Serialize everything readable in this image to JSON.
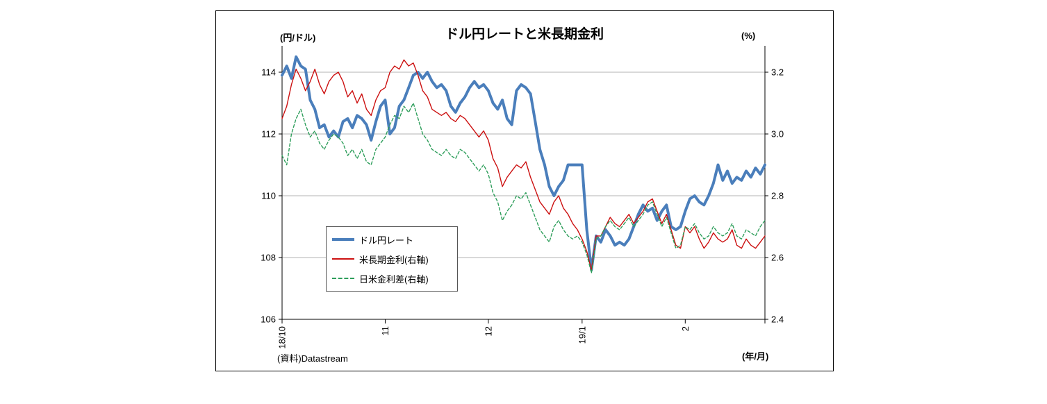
{
  "chart_data": {
    "type": "line",
    "title": "ドル円レートと米長期金利",
    "x_axis_unit": "(年/月)",
    "source": "(資料)Datastream",
    "grid": "horizontal",
    "legend_position": "inside-left-bottom",
    "left_axis": {
      "unit": "(円/ドル)",
      "min": 106,
      "max": 114,
      "ticks": [
        106,
        108,
        110,
        112,
        114
      ]
    },
    "right_axis": {
      "unit": "(%)",
      "min": 2.4,
      "max": 3.2,
      "ticks": [
        2.4,
        2.6,
        2.8,
        3.0,
        3.2
      ]
    },
    "x_ticks": [
      {
        "label": "18/10",
        "index": 0
      },
      {
        "label": "11",
        "index": 22
      },
      {
        "label": "12",
        "index": 44
      },
      {
        "label": "19/1",
        "index": 64
      },
      {
        "label": "2",
        "index": 86
      }
    ],
    "series": [
      {
        "name": "ドル円レート",
        "axis": "left",
        "color": "#4a7ebb",
        "style": "solid-thick",
        "values": [
          113.9,
          114.2,
          113.8,
          114.5,
          114.2,
          114.1,
          113.1,
          112.8,
          112.2,
          112.3,
          111.9,
          112.1,
          111.9,
          112.4,
          112.5,
          112.2,
          112.6,
          112.5,
          112.3,
          111.8,
          112.4,
          112.9,
          113.1,
          112.0,
          112.2,
          112.9,
          113.1,
          113.5,
          113.9,
          114.0,
          113.8,
          114.0,
          113.7,
          113.5,
          113.6,
          113.4,
          112.9,
          112.7,
          113.0,
          113.2,
          113.5,
          113.7,
          113.5,
          113.6,
          113.4,
          113.0,
          112.8,
          113.1,
          112.5,
          112.3,
          113.4,
          113.6,
          113.5,
          113.3,
          112.4,
          111.5,
          111.0,
          110.3,
          110.0,
          110.3,
          110.5,
          111.0,
          111.0,
          111.0,
          111.0,
          108.9,
          107.6,
          108.7,
          108.5,
          108.9,
          108.7,
          108.4,
          108.5,
          108.4,
          108.6,
          109.0,
          109.4,
          109.7,
          109.5,
          109.6,
          109.2,
          109.5,
          109.7,
          109.0,
          108.9,
          109.0,
          109.5,
          109.9,
          110.0,
          109.8,
          109.7,
          110.0,
          110.4,
          111.0,
          110.5,
          110.8,
          110.4,
          110.6,
          110.5,
          110.8,
          110.6,
          110.9,
          110.7,
          111.0
        ]
      },
      {
        "name": "米長期金利(右軸)",
        "axis": "right",
        "color": "#cc1111",
        "style": "solid-thin",
        "values": [
          3.05,
          3.09,
          3.16,
          3.21,
          3.18,
          3.14,
          3.17,
          3.21,
          3.16,
          3.13,
          3.17,
          3.19,
          3.2,
          3.17,
          3.12,
          3.14,
          3.1,
          3.13,
          3.08,
          3.06,
          3.11,
          3.14,
          3.15,
          3.2,
          3.22,
          3.21,
          3.24,
          3.22,
          3.23,
          3.19,
          3.14,
          3.12,
          3.08,
          3.07,
          3.06,
          3.07,
          3.05,
          3.04,
          3.06,
          3.05,
          3.03,
          3.01,
          2.99,
          3.01,
          2.98,
          2.92,
          2.89,
          2.83,
          2.86,
          2.88,
          2.9,
          2.89,
          2.91,
          2.86,
          2.82,
          2.78,
          2.76,
          2.74,
          2.78,
          2.8,
          2.76,
          2.74,
          2.71,
          2.69,
          2.66,
          2.62,
          2.56,
          2.67,
          2.67,
          2.7,
          2.73,
          2.71,
          2.7,
          2.72,
          2.74,
          2.71,
          2.73,
          2.75,
          2.78,
          2.79,
          2.75,
          2.71,
          2.74,
          2.69,
          2.64,
          2.63,
          2.7,
          2.68,
          2.7,
          2.66,
          2.63,
          2.65,
          2.68,
          2.66,
          2.65,
          2.66,
          2.69,
          2.64,
          2.63,
          2.66,
          2.64,
          2.63,
          2.65,
          2.67
        ]
      },
      {
        "name": "日米金利差(右軸)",
        "axis": "right",
        "color": "#2e9e5b",
        "style": "dashed",
        "values": [
          2.93,
          2.9,
          3.0,
          3.05,
          3.08,
          3.03,
          2.99,
          3.01,
          2.97,
          2.95,
          2.98,
          3.0,
          2.99,
          2.97,
          2.93,
          2.95,
          2.92,
          2.95,
          2.91,
          2.9,
          2.95,
          2.97,
          2.99,
          3.03,
          3.06,
          3.05,
          3.09,
          3.07,
          3.1,
          3.05,
          3.0,
          2.98,
          2.95,
          2.94,
          2.93,
          2.95,
          2.93,
          2.92,
          2.95,
          2.94,
          2.92,
          2.9,
          2.88,
          2.9,
          2.87,
          2.81,
          2.78,
          2.72,
          2.75,
          2.77,
          2.8,
          2.79,
          2.81,
          2.77,
          2.73,
          2.69,
          2.67,
          2.65,
          2.7,
          2.72,
          2.69,
          2.67,
          2.66,
          2.67,
          2.65,
          2.61,
          2.55,
          2.66,
          2.67,
          2.7,
          2.72,
          2.7,
          2.69,
          2.71,
          2.73,
          2.7,
          2.72,
          2.74,
          2.77,
          2.78,
          2.74,
          2.7,
          2.73,
          2.68,
          2.63,
          2.64,
          2.7,
          2.69,
          2.71,
          2.68,
          2.66,
          2.67,
          2.7,
          2.68,
          2.67,
          2.68,
          2.71,
          2.67,
          2.66,
          2.69,
          2.68,
          2.67,
          2.7,
          2.72
        ]
      }
    ]
  }
}
